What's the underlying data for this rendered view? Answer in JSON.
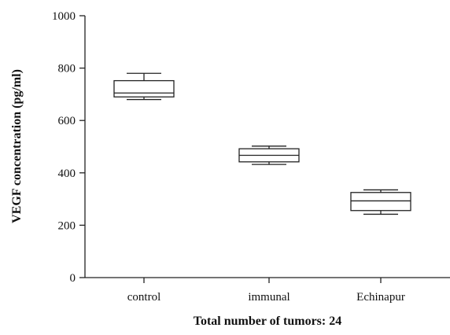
{
  "chart_data": {
    "type": "box",
    "title": "",
    "xlabel": "Total number of tumors: 24",
    "ylabel": "VEGF concentration (pg/ml)",
    "ylim": [
      0,
      1000
    ],
    "yticks": [
      0,
      200,
      400,
      600,
      800,
      1000
    ],
    "categories": [
      "control",
      "immunal",
      "Echinapur"
    ],
    "boxes": [
      {
        "category": "control",
        "min": 680,
        "q1": 690,
        "median": 705,
        "q3": 752,
        "max": 780
      },
      {
        "category": "immunal",
        "min": 432,
        "q1": 442,
        "median": 467,
        "q3": 492,
        "max": 502
      },
      {
        "category": "Echinapur",
        "min": 242,
        "q1": 256,
        "median": 293,
        "q3": 325,
        "max": 335
      }
    ],
    "grid": false,
    "legend": "none"
  }
}
